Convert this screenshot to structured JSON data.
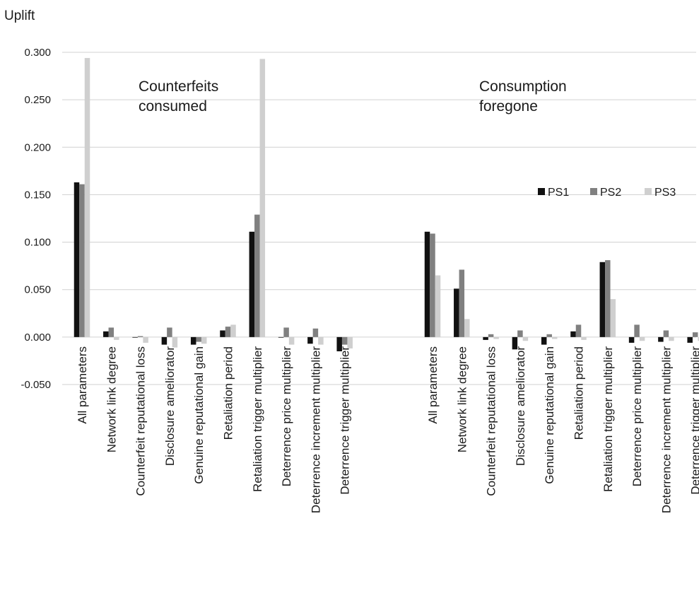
{
  "chart_data": {
    "type": "bar",
    "ylabel": "Uplift",
    "ylim": [
      -0.05,
      0.3
    ],
    "yticks": [
      "-0.050",
      "0.000",
      "0.050",
      "0.100",
      "0.150",
      "0.200",
      "0.250",
      "0.300"
    ],
    "grid": true,
    "legend_position": "right",
    "groups": [
      {
        "label_lines": [
          "Counterfeits",
          "consumed"
        ],
        "categories": [
          "All parameters",
          "Network link degree",
          "Counterfeit reputational loss",
          "Disclosure ameliorator",
          "Genuine reputational gain",
          "Retaliation period",
          "Retaliation trigger multiplier",
          "Deterrence price multiplier",
          "Deterrence increment multiplier",
          "Deterrence trigger multiplier"
        ],
        "series": [
          {
            "name": "PS1",
            "values": [
              0.163,
              0.006,
              0.0,
              -0.008,
              -0.008,
              0.007,
              0.111,
              0.0,
              -0.007,
              -0.015
            ]
          },
          {
            "name": "PS2",
            "values": [
              0.161,
              0.01,
              0.001,
              0.01,
              -0.005,
              0.011,
              0.129,
              0.01,
              0.009,
              -0.008
            ]
          },
          {
            "name": "PS3",
            "values": [
              0.294,
              -0.003,
              -0.006,
              -0.011,
              -0.007,
              0.013,
              0.293,
              -0.008,
              -0.008,
              -0.012
            ]
          }
        ]
      },
      {
        "label_lines": [
          "Consumption",
          "foregone"
        ],
        "categories": [
          "All parameters",
          "Network link degree",
          "Counterfeit reputational loss",
          "Disclosure ameliorator",
          "Genuine reputational gain",
          "Retaliation period",
          "Retaliation trigger multiplier",
          "Deterrence price multiplier",
          "Deterrence increment multiplier",
          "Deterrence trigger multiplier"
        ],
        "series": [
          {
            "name": "PS1",
            "values": [
              0.111,
              0.051,
              -0.003,
              -0.013,
              -0.008,
              0.006,
              0.079,
              -0.006,
              -0.005,
              -0.006
            ]
          },
          {
            "name": "PS2",
            "values": [
              0.109,
              0.071,
              0.003,
              0.007,
              0.003,
              0.013,
              0.081,
              0.013,
              0.007,
              0.005
            ]
          },
          {
            "name": "PS3",
            "values": [
              0.065,
              0.019,
              -0.002,
              -0.004,
              -0.002,
              -0.003,
              0.04,
              -0.004,
              -0.004,
              -0.004
            ]
          }
        ]
      }
    ],
    "series_colors": {
      "PS1": "#111111",
      "PS2": "#808080",
      "PS3": "#cfcfcf"
    }
  }
}
